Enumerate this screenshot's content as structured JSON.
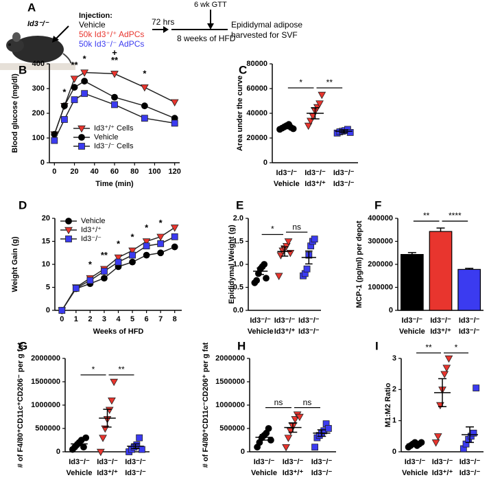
{
  "scheme": {
    "panel": "A",
    "mouse_label": "Id3⁻/⁻",
    "injection": {
      "title": "Injection:",
      "items": [
        {
          "text": "Vehicle",
          "color": "#000000"
        },
        {
          "text": "50k Id3⁺/⁺ AdPCs",
          "color": "#e8352e"
        },
        {
          "text": "50k Id3⁻/⁻ AdPCs",
          "color": "#3b3bf0"
        }
      ]
    },
    "interval": "72 hrs",
    "timepoint": "6 wk GTT",
    "duration": "8 weeks of HFD",
    "outcome": [
      "Epididymal adipose",
      "harvested for SVF"
    ]
  },
  "chart_data": [
    {
      "panel": "B",
      "type": "line",
      "xlabel": "Time (min)",
      "ylabel": "Blood glucose (mg/dl)",
      "x": [
        0,
        10,
        20,
        30,
        60,
        90,
        120
      ],
      "xlim": [
        -5,
        125
      ],
      "xticks": [
        0,
        20,
        40,
        60,
        80,
        100,
        120
      ],
      "ylim": [
        0,
        400
      ],
      "yticks": [
        0,
        100,
        200,
        300,
        400
      ],
      "legend_loc": "lower right",
      "series": [
        {
          "name": "Id3⁺/⁺ Cells",
          "color": "#e8352e",
          "marker": "triangle",
          "values": [
            115,
            230,
            340,
            365,
            360,
            305,
            245
          ]
        },
        {
          "name": "Vehicle",
          "color": "#000000",
          "marker": "circle",
          "values": [
            115,
            230,
            305,
            330,
            265,
            230,
            180
          ]
        },
        {
          "name": "Id3⁻/⁻ Cells",
          "color": "#3b3bf0",
          "marker": "square",
          "values": [
            90,
            175,
            255,
            280,
            235,
            180,
            160
          ]
        }
      ],
      "annotations": [
        {
          "x": 10,
          "label": "*"
        },
        {
          "x": 20,
          "label": "**"
        },
        {
          "x": 30,
          "label": "*"
        },
        {
          "x": 60,
          "label": "**"
        },
        {
          "x": 60,
          "label": "+"
        },
        {
          "x": 90,
          "label": "*"
        }
      ]
    },
    {
      "panel": "C",
      "type": "dot",
      "ylabel": "Area under the curve",
      "ylim": [
        0,
        80000
      ],
      "yticks": [
        0,
        20000,
        40000,
        60000,
        80000
      ],
      "categories": [
        [
          "Id3⁻/⁻",
          "Vehicle"
        ],
        [
          "Id3⁻/⁻",
          "Id3⁺/⁺"
        ],
        [
          "Id3⁻/⁻",
          "Id3⁻/⁻"
        ]
      ],
      "groups": [
        {
          "color": "#000000",
          "marker": "circle",
          "values": [
            27000,
            28000,
            29000,
            30000,
            31000,
            28500,
            27500
          ],
          "mean": 29000,
          "error": 1500
        },
        {
          "color": "#e8352e",
          "marker": "triangle",
          "values": [
            30000,
            34000,
            38000,
            42000,
            45000,
            48000,
            55000
          ],
          "mean": 40000,
          "error": 4500
        },
        {
          "color": "#3b3bf0",
          "marker": "square",
          "values": [
            24000,
            25000,
            25500,
            26000,
            27000,
            24500
          ],
          "mean": 25500,
          "error": 1200
        }
      ],
      "comparisons": [
        {
          "label": "*"
        },
        {
          "label": "**"
        }
      ]
    },
    {
      "panel": "D",
      "type": "line",
      "xlabel": "Weeks of HFD",
      "ylabel": "Weight Gain (g)",
      "x": [
        0,
        1,
        2,
        3,
        4,
        5,
        6,
        7,
        8
      ],
      "xlim": [
        -0.5,
        8.5
      ],
      "xticks": [
        0,
        1,
        2,
        3,
        4,
        5,
        6,
        7,
        8
      ],
      "ylim": [
        0,
        20
      ],
      "yticks": [
        0,
        5,
        10,
        15,
        20
      ],
      "legend_loc": "upper left",
      "series": [
        {
          "name": "Vehicle",
          "color": "#000000",
          "marker": "circle",
          "values": [
            0,
            4.7,
            5.8,
            7,
            9.5,
            10.5,
            12,
            12.5,
            13.8
          ]
        },
        {
          "name": "Id3⁺/⁺",
          "color": "#e8352e",
          "marker": "triangle",
          "values": [
            0,
            5,
            7,
            9,
            11.5,
            13,
            15,
            16,
            18
          ]
        },
        {
          "name": "Id3⁻/⁻",
          "color": "#3b3bf0",
          "marker": "square",
          "values": [
            0,
            4.8,
            6.5,
            8.5,
            10.5,
            12,
            14,
            14.5,
            16
          ]
        }
      ],
      "annotations": [
        {
          "x": 2,
          "label": "*"
        },
        {
          "x": 3,
          "label": "**"
        },
        {
          "x": 4,
          "label": "*"
        },
        {
          "x": 5,
          "label": "*"
        },
        {
          "x": 6,
          "label": "*"
        },
        {
          "x": 7,
          "label": "*"
        }
      ]
    },
    {
      "panel": "E",
      "type": "dot",
      "ylabel": "Epididymal Weight (g)",
      "ylim": [
        0,
        2
      ],
      "yticks": [
        {
          "value": 0,
          "label": "0.0"
        },
        0.5,
        {
          "value": 1,
          "label": "1.0"
        },
        1.5,
        {
          "value": 2,
          "label": "2.0"
        }
      ],
      "categories": [
        [
          "Id3⁻/⁻",
          "Vehicle"
        ],
        [
          "Id3⁻/⁻",
          "Id3⁺/⁺"
        ],
        [
          "Id3⁻/⁻",
          "Id3⁻/⁻"
        ]
      ],
      "groups": [
        {
          "color": "#000000",
          "marker": "circle",
          "values": [
            0.6,
            0.65,
            0.8,
            0.9,
            0.95,
            1.0,
            0.7
          ],
          "mean": 0.85,
          "error": 0.07
        },
        {
          "color": "#e8352e",
          "marker": "triangle",
          "values": [
            0.75,
            1.2,
            1.3,
            1.35,
            1.4,
            1.5,
            1.25
          ],
          "mean": 1.28,
          "error": 0.1
        },
        {
          "color": "#3b3bf0",
          "marker": "square",
          "values": [
            0.75,
            0.8,
            0.9,
            1.2,
            1.4,
            1.5,
            1.55
          ],
          "mean": 1.15,
          "error": 0.14
        }
      ],
      "comparisons": [
        {
          "label": "*"
        },
        {
          "label": "ns"
        }
      ]
    },
    {
      "panel": "F",
      "type": "bar",
      "ylabel": "MCP-1 (pg/ml) per depot",
      "ylim": [
        0,
        400000
      ],
      "yticks": [
        0,
        100000,
        200000,
        300000,
        400000
      ],
      "categories": [
        [
          "Id3⁻/⁻",
          "Vehicle"
        ],
        [
          "Id3⁻/⁻",
          "Id3⁺/⁺"
        ],
        [
          "Id3⁻/⁻",
          "Id3⁻/⁻"
        ]
      ],
      "colors": [
        "#000000",
        "#e8352e",
        "#3b3bf0"
      ],
      "values": [
        243000,
        343000,
        178000
      ],
      "errors": [
        8000,
        15000,
        5000
      ],
      "comparisons": [
        {
          "label": "**"
        },
        {
          "label": "****"
        }
      ]
    },
    {
      "panel": "G",
      "type": "dot",
      "ylabel": "# of F4/80⁺CD11c⁺CD206⁻ per g fat",
      "ylim": [
        0,
        2000000
      ],
      "yticks": [
        0,
        500000,
        1000000,
        1500000,
        2000000
      ],
      "categories": [
        [
          "Id3⁻/⁻",
          "Vehicle"
        ],
        [
          "Id3⁻/⁻",
          "Id3⁺/⁺"
        ],
        [
          "Id3⁻/⁻",
          "Id3⁻/⁻"
        ]
      ],
      "groups": [
        {
          "color": "#000000",
          "marker": "circle",
          "values": [
            50000,
            100000,
            150000,
            200000,
            250000,
            100000,
            300000
          ],
          "mean": 170000,
          "error": 40000
        },
        {
          "color": "#e8352e",
          "marker": "triangle",
          "values": [
            0,
            300000,
            500000,
            700000,
            900000,
            1100000,
            1500000
          ],
          "mean": 720000,
          "error": 190000
        },
        {
          "color": "#3b3bf0",
          "marker": "square",
          "values": [
            0,
            50000,
            100000,
            150000,
            300000,
            50000
          ],
          "mean": 120000,
          "error": 50000
        }
      ],
      "comparisons": [
        {
          "label": "*"
        },
        {
          "label": "**"
        }
      ]
    },
    {
      "panel": "H",
      "type": "dot",
      "ylabel": "# of F4/80⁺CD11c⁻CD206⁺ per g fat",
      "ylim": [
        0,
        2000000
      ],
      "yticks": [
        0,
        500000,
        1000000,
        1500000,
        2000000
      ],
      "categories": [
        [
          "Id3⁻/⁻",
          "Vehicle"
        ],
        [
          "Id3⁻/⁻",
          "Id3⁺/⁺"
        ],
        [
          "Id3⁻/⁻",
          "Id3⁻/⁻"
        ]
      ],
      "groups": [
        {
          "color": "#000000",
          "marker": "circle",
          "values": [
            100000,
            200000,
            300000,
            350000,
            400000,
            500000,
            250000
          ],
          "mean": 310000,
          "error": 60000
        },
        {
          "color": "#e8352e",
          "marker": "triangle",
          "values": [
            100000,
            300000,
            450000,
            550000,
            700000,
            800000,
            750000
          ],
          "mean": 520000,
          "error": 100000
        },
        {
          "color": "#3b3bf0",
          "marker": "square",
          "values": [
            100000,
            300000,
            350000,
            400000,
            450000,
            600000,
            500000
          ],
          "mean": 400000,
          "error": 70000
        }
      ],
      "comparisons": [
        {
          "label": "ns"
        },
        {
          "label": "ns"
        }
      ]
    },
    {
      "panel": "I",
      "type": "dot",
      "ylabel": "M1:M2 Ratio",
      "ylim": [
        0,
        3
      ],
      "yticks": [
        0,
        1,
        2,
        3
      ],
      "categories": [
        [
          "Id3⁻/⁻",
          "Vehicle"
        ],
        [
          "Id3⁻/⁻",
          "Id3⁺/⁺"
        ],
        [
          "Id3⁻/⁻",
          "Id3⁻/⁻"
        ]
      ],
      "groups": [
        {
          "color": "#000000",
          "marker": "circle",
          "values": [
            0.15,
            0.2,
            0.25,
            0.3,
            0.2,
            0.25,
            0.3
          ],
          "mean": 0.25,
          "error": 0.03
        },
        {
          "color": "#e8352e",
          "marker": "triangle",
          "values": [
            0.3,
            0.5,
            1.5,
            2.0,
            2.5,
            2.7,
            3.0
          ],
          "mean": 1.9,
          "error": 0.45
        },
        {
          "color": "#3b3bf0",
          "marker": "square",
          "values": [
            0.1,
            0.25,
            0.4,
            0.5,
            0.6,
            2.05
          ],
          "mean": 0.55,
          "error": 0.25
        }
      ],
      "comparisons": [
        {
          "label": "**"
        },
        {
          "label": "*"
        }
      ]
    }
  ]
}
